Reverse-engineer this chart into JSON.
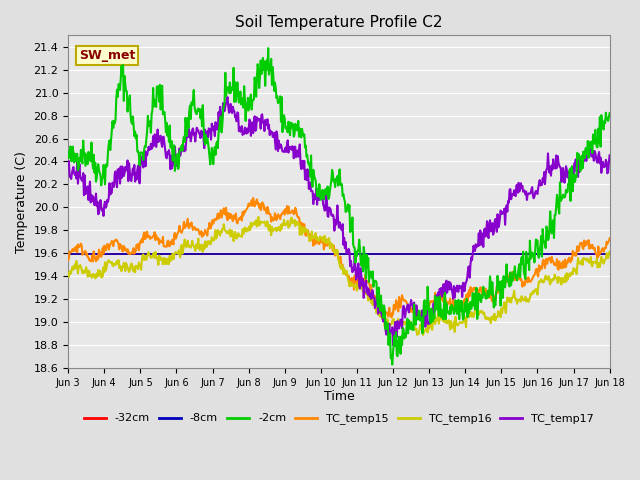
{
  "title": "Soil Temperature Profile C2",
  "xlabel": "Time",
  "ylabel": "Temperature (C)",
  "ylim": [
    18.6,
    21.5
  ],
  "xlim": [
    0,
    360
  ],
  "background_color": "#e0e0e0",
  "plot_bg_color": "#e8e8e8",
  "grid_color": "#ffffff",
  "legend_label": "SW_met",
  "legend_bg": "#ffffcc",
  "legend_border": "#bbaa00",
  "legend_text_color": "#880000",
  "series": {
    "neg32cm": {
      "color": "#ff0000",
      "label": "-32cm",
      "lw": 1.2
    },
    "neg8cm": {
      "color": "#0000bb",
      "label": "-8cm",
      "lw": 1.2
    },
    "neg2cm": {
      "color": "#00cc00",
      "label": "-2cm",
      "lw": 1.5
    },
    "TC15": {
      "color": "#ff8800",
      "label": "TC_temp15",
      "lw": 1.5
    },
    "TC16": {
      "color": "#cccc00",
      "label": "TC_temp16",
      "lw": 1.5
    },
    "TC17": {
      "color": "#8800cc",
      "label": "TC_temp17",
      "lw": 1.5
    }
  },
  "xtick_labels": [
    "Jun 3",
    "Jun 4",
    "Jun 5",
    "Jun 6",
    "Jun 7",
    "Jun 8",
    "Jun 9",
    "Jun 10",
    "Jun 11",
    "Jun 12",
    "Jun 13",
    "Jun 14",
    "Jun 15",
    "Jun 16",
    "Jun 17",
    "Jun 18"
  ],
  "xtick_positions": [
    0,
    24,
    48,
    72,
    96,
    120,
    144,
    168,
    192,
    216,
    240,
    264,
    288,
    312,
    336,
    360
  ],
  "figsize": [
    6.4,
    4.8
  ],
  "dpi": 100
}
